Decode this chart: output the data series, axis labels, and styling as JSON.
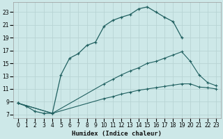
{
  "xlabel": "Humidex (Indice chaleur)",
  "ylabel": "",
  "bg_color": "#cde8e8",
  "grid_color": "#b8d4d4",
  "line_color": "#206060",
  "xlim": [
    -0.5,
    23.5
  ],
  "ylim": [
    6.5,
    24.5
  ],
  "yticks": [
    7,
    9,
    11,
    13,
    15,
    17,
    19,
    21,
    23
  ],
  "xticks": [
    0,
    1,
    2,
    3,
    4,
    5,
    6,
    7,
    8,
    9,
    10,
    11,
    12,
    13,
    14,
    15,
    16,
    17,
    18,
    19,
    20,
    21,
    22,
    23
  ],
  "curve1_x": [
    0,
    1,
    2,
    3,
    4,
    5,
    6,
    7,
    8,
    9,
    10,
    11,
    12,
    13,
    14,
    15,
    16,
    17,
    18,
    19
  ],
  "curve1_y": [
    8.8,
    8.3,
    7.5,
    7.2,
    7.2,
    13.2,
    15.8,
    16.5,
    17.8,
    18.3,
    20.8,
    21.7,
    22.2,
    22.6,
    23.5,
    23.8,
    23.0,
    22.2,
    21.5,
    19.0
  ],
  "curve2_x": [
    0,
    4,
    10,
    11,
    12,
    13,
    14,
    15,
    16,
    17,
    18,
    19,
    20,
    21,
    22,
    23
  ],
  "curve2_y": [
    8.8,
    7.2,
    11.8,
    12.5,
    13.2,
    13.8,
    14.3,
    15.0,
    15.3,
    15.8,
    16.3,
    16.8,
    15.3,
    13.2,
    12.0,
    11.5
  ],
  "curve3_x": [
    0,
    4,
    10,
    11,
    12,
    13,
    14,
    15,
    16,
    17,
    18,
    19,
    20,
    21,
    22,
    23
  ],
  "curve3_y": [
    8.8,
    7.2,
    9.5,
    9.8,
    10.2,
    10.5,
    10.8,
    11.0,
    11.2,
    11.4,
    11.6,
    11.8,
    11.8,
    11.3,
    11.2,
    11.0
  ]
}
